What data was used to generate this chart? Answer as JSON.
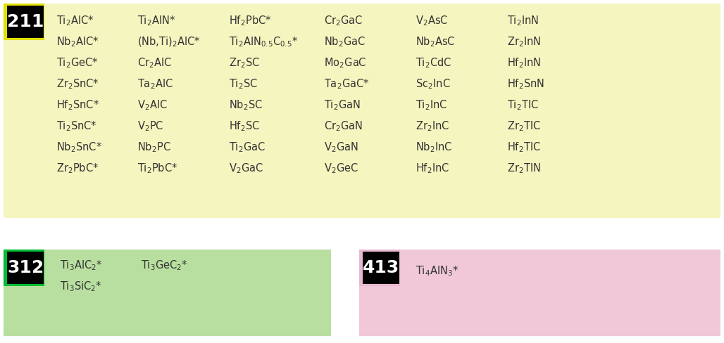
{
  "bg_color": "#ffffff",
  "yellow_bg": "#f5f5c0",
  "green_bg": "#b8dfa0",
  "pink_bg": "#f0c8d8",
  "black_bg": "#000000",
  "yellow_sq": "#e0e000",
  "green_sq": "#00bb33",
  "pink_sq": "#e8b8d0",
  "text_color": "#333333",
  "col211": [
    [
      "Ti$_2$AlC*",
      "Ti$_2$AlN*",
      "Hf$_2$PbC*",
      "Cr$_2$GaC",
      "V$_2$AsC",
      "Ti$_2$InN"
    ],
    [
      "Nb$_2$AlC*",
      "(Nb,Ti)$_2$AlC*",
      "Ti$_2$AlN$_{0.5}$C$_{0.5}$*",
      "Nb$_2$GaC",
      "Nb$_2$AsC",
      "Zr$_2$InN"
    ],
    [
      "Ti$_2$GeC*",
      "Cr$_2$AlC",
      "Zr$_2$SC",
      "Mo$_2$GaC",
      "Ti$_2$CdC",
      "Hf$_2$InN"
    ],
    [
      "Zr$_2$SnC*",
      "Ta$_2$AlC",
      "Ti$_2$SC",
      "Ta$_2$GaC*",
      "Sc$_2$InC",
      "Hf$_2$SnN"
    ],
    [
      "Hf$_2$SnC*",
      "V$_2$AlC",
      "Nb$_2$SC",
      "Ti$_2$GaN",
      "Ti$_2$InC",
      "Ti$_2$TlC"
    ],
    [
      "Ti$_2$SnC*",
      "V$_2$PC",
      "Hf$_2$SC",
      "Cr$_2$GaN",
      "Zr$_2$InC",
      "Zr$_2$TlC"
    ],
    [
      "Nb$_2$SnC*",
      "Nb$_2$PC",
      "Ti$_2$GaC",
      "V$_2$GaN",
      "Nb$_2$InC",
      "Hf$_2$TlC"
    ],
    [
      "Zr$_2$PbC*",
      "Ti$_2$PbC*",
      "V$_2$GaC",
      "V$_2$GeC",
      "Hf$_2$InC",
      "Zr$_2$TlN"
    ]
  ],
  "col312": [
    [
      "Ti$_3$AlC$_2$*",
      "Ti$_3$GeC$_2$*"
    ],
    [
      "Ti$_3$SiC$_2$*",
      ""
    ]
  ],
  "col413": [
    [
      "Ti$_4$AlN$_3$*"
    ]
  ],
  "fontsize_label": 18,
  "fontsize_data": 10.5
}
